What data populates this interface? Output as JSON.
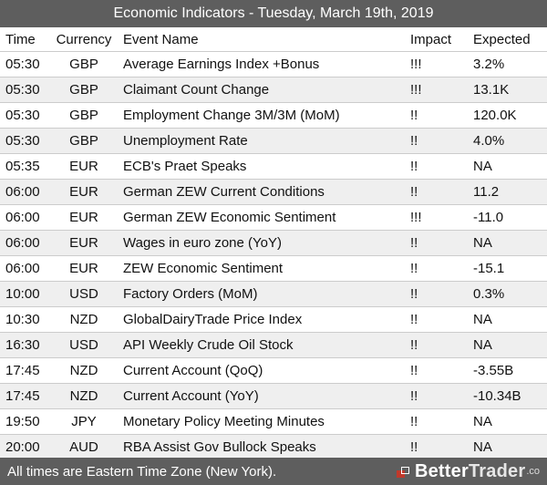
{
  "title": "Economic Indicators - Tuesday, March 19th, 2019",
  "columns": {
    "time": "Time",
    "currency": "Currency",
    "event": "Event Name",
    "impact": "Impact",
    "expected": "Expected"
  },
  "rows": [
    {
      "time": "05:30",
      "currency": "GBP",
      "event": "Average Earnings Index +Bonus",
      "impact": "!!!",
      "expected": "3.2%"
    },
    {
      "time": "05:30",
      "currency": "GBP",
      "event": "Claimant Count Change",
      "impact": "!!!",
      "expected": "13.1K"
    },
    {
      "time": "05:30",
      "currency": "GBP",
      "event": "Employment Change 3M/3M (MoM)",
      "impact": "!!",
      "expected": "120.0K"
    },
    {
      "time": "05:30",
      "currency": "GBP",
      "event": "Unemployment Rate",
      "impact": "!!",
      "expected": "4.0%"
    },
    {
      "time": "05:35",
      "currency": "EUR",
      "event": "ECB's Praet Speaks",
      "impact": "!!",
      "expected": "NA"
    },
    {
      "time": "06:00",
      "currency": "EUR",
      "event": "German ZEW Current Conditions",
      "impact": "!!",
      "expected": "11.2"
    },
    {
      "time": "06:00",
      "currency": "EUR",
      "event": "German ZEW Economic Sentiment",
      "impact": "!!!",
      "expected": "-11.0"
    },
    {
      "time": "06:00",
      "currency": "EUR",
      "event": "Wages in euro zone (YoY)",
      "impact": "!!",
      "expected": "NA"
    },
    {
      "time": "06:00",
      "currency": "EUR",
      "event": "ZEW Economic Sentiment",
      "impact": "!!",
      "expected": "-15.1"
    },
    {
      "time": "10:00",
      "currency": "USD",
      "event": "Factory Orders (MoM)",
      "impact": "!!",
      "expected": "0.3%"
    },
    {
      "time": "10:30",
      "currency": "NZD",
      "event": "GlobalDairyTrade Price Index",
      "impact": "!!",
      "expected": "NA"
    },
    {
      "time": "16:30",
      "currency": "USD",
      "event": "API Weekly Crude Oil Stock",
      "impact": "!!",
      "expected": "NA"
    },
    {
      "time": "17:45",
      "currency": "NZD",
      "event": "Current Account (QoQ)",
      "impact": "!!",
      "expected": "-3.55B"
    },
    {
      "time": "17:45",
      "currency": "NZD",
      "event": "Current Account (YoY)",
      "impact": "!!",
      "expected": "-10.34B"
    },
    {
      "time": "19:50",
      "currency": "JPY",
      "event": "Monetary Policy Meeting Minutes",
      "impact": "!!",
      "expected": "NA"
    },
    {
      "time": "20:00",
      "currency": "AUD",
      "event": "RBA Assist Gov Bullock Speaks",
      "impact": "!!",
      "expected": "NA"
    }
  ],
  "footer": {
    "note": "All times are Eastern Time Zone (New York).",
    "brand_a": "Better",
    "brand_b": "Trader",
    "brand_suffix": ".co",
    "brand_icon": "bettertrader-logo-icon"
  },
  "colors": {
    "bar": "#5e5e5e",
    "row_alt": "#efefef",
    "brand_mark": "#c0392b"
  }
}
